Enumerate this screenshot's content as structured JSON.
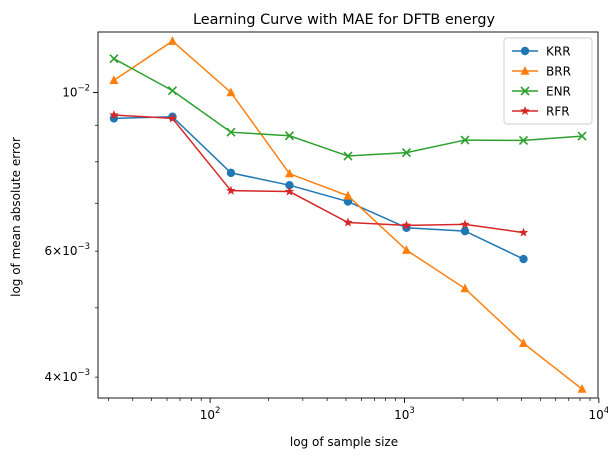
{
  "chart_data": {
    "type": "line",
    "title": "Learning Curve with MAE for DFTB energy",
    "xlabel": "log of sample size",
    "ylabel": "log of mean absolute error",
    "xscale": "log",
    "yscale": "log",
    "xlim": [
      26.5,
      9900
    ],
    "ylim": [
      0.00374,
      0.01215
    ],
    "grid": false,
    "legend_position": "top-right",
    "x_ticks": [
      {
        "value": 100,
        "label": "10",
        "exp": "2"
      },
      {
        "value": 1000,
        "label": "10",
        "exp": "3"
      },
      {
        "value": 10000,
        "label": "10",
        "exp": "4"
      }
    ],
    "y_ticks_major": [
      {
        "value": 0.01,
        "label": "10",
        "exp": "−2"
      }
    ],
    "y_ticks_minor_labeled": [
      {
        "value": 0.004,
        "label": "4×10",
        "exp": "−3"
      },
      {
        "value": 0.006,
        "label": "6×10",
        "exp": "−3"
      }
    ],
    "y_ticks_minor_unlabeled": [
      0.005,
      0.007,
      0.008,
      0.009
    ],
    "series": [
      {
        "name": "KRR",
        "color": "#1f77b4",
        "marker": "circle",
        "x": [
          32,
          64,
          128,
          256,
          512,
          1024,
          2048,
          4096
        ],
        "y": [
          0.0092,
          0.00925,
          0.00772,
          0.00742,
          0.00704,
          0.00647,
          0.0064,
          0.00585
        ]
      },
      {
        "name": "BRR",
        "color": "#ff7f0e",
        "marker": "triangle",
        "x": [
          32,
          64,
          128,
          256,
          512,
          1024,
          2048,
          4096,
          8192
        ],
        "y": [
          0.0104,
          0.0118,
          0.01,
          0.0077,
          0.00717,
          0.00602,
          0.00532,
          0.00446,
          0.00385
        ]
      },
      {
        "name": "ENR",
        "color": "#2ca02c",
        "marker": "x",
        "x": [
          32,
          64,
          128,
          256,
          512,
          1024,
          2048,
          4096,
          8192
        ],
        "y": [
          0.01115,
          0.01006,
          0.0088,
          0.0087,
          0.00815,
          0.00824,
          0.00858,
          0.00857,
          0.00869
        ]
      },
      {
        "name": "RFR",
        "color": "#d62728",
        "marker": "star",
        "x": [
          32,
          64,
          128,
          256,
          512,
          1024,
          2048,
          4096
        ],
        "y": [
          0.0093,
          0.0092,
          0.00729,
          0.00727,
          0.00658,
          0.00652,
          0.00654,
          0.00637
        ]
      }
    ]
  }
}
